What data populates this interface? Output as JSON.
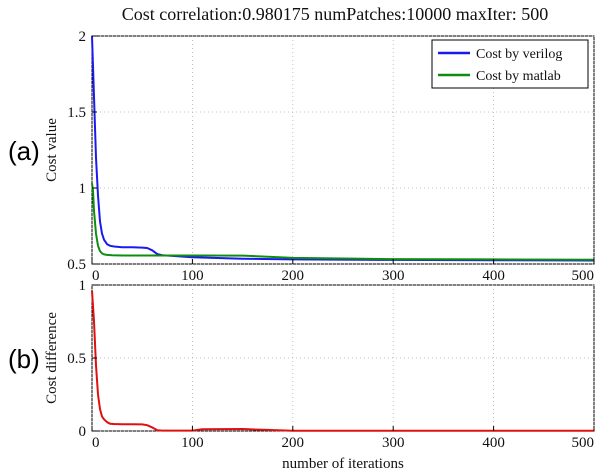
{
  "title": "Cost correlation:0.980175   numPatches:10000   maxIter: 500",
  "panel_labels": [
    "(a)",
    "(b)"
  ],
  "chart_data": [
    {
      "type": "line",
      "panel": "(a)",
      "title": "Cost correlation:0.980175   numPatches:10000   maxIter: 500",
      "xlabel": "",
      "ylabel": "Cost value",
      "xlim": [
        0,
        500
      ],
      "ylim": [
        0.5,
        2
      ],
      "xticks": [
        0,
        100,
        200,
        300,
        400,
        500
      ],
      "xtick_labels": [
        "0",
        "100",
        "200",
        "300",
        "400",
        "500"
      ],
      "yticks": [
        0.5,
        1,
        1.5,
        2
      ],
      "ytick_labels": [
        "0.5",
        "1",
        "1.5",
        "2"
      ],
      "legend_position": "top-right",
      "series": [
        {
          "name": "Cost by verilog",
          "color": "#1a1aee",
          "x": [
            0,
            2,
            4,
            6,
            8,
            10,
            12,
            15,
            18,
            22,
            30,
            40,
            50,
            55,
            60,
            65,
            70,
            80,
            100,
            150,
            200,
            300,
            400,
            500
          ],
          "y": [
            2.0,
            1.6,
            1.2,
            0.95,
            0.78,
            0.7,
            0.66,
            0.63,
            0.62,
            0.615,
            0.61,
            0.61,
            0.608,
            0.605,
            0.59,
            0.565,
            0.558,
            0.553,
            0.545,
            0.535,
            0.53,
            0.527,
            0.525,
            0.523
          ]
        },
        {
          "name": "Cost by matlab",
          "color": "#108c10",
          "x": [
            0,
            1,
            2,
            4,
            6,
            8,
            10,
            12,
            15,
            20,
            30,
            50,
            100,
            150,
            200,
            300,
            400,
            500
          ],
          "y": [
            1.03,
            0.98,
            0.85,
            0.7,
            0.62,
            0.585,
            0.57,
            0.563,
            0.56,
            0.558,
            0.556,
            0.556,
            0.556,
            0.555,
            0.54,
            0.532,
            0.53,
            0.528
          ]
        }
      ]
    },
    {
      "type": "line",
      "panel": "(b)",
      "xlabel": "number of iterations",
      "ylabel": "Cost difference",
      "xlim": [
        0,
        500
      ],
      "ylim": [
        0,
        1
      ],
      "xticks": [
        0,
        100,
        200,
        300,
        400,
        500
      ],
      "xtick_labels": [
        "0",
        "100",
        "200",
        "300",
        "400",
        "500"
      ],
      "yticks": [
        0,
        0.5,
        1
      ],
      "ytick_labels": [
        "0",
        "0.5",
        "1"
      ],
      "series": [
        {
          "color": "#e01010",
          "x": [
            0,
            2,
            4,
            6,
            8,
            10,
            12,
            15,
            18,
            22,
            30,
            40,
            50,
            55,
            60,
            65,
            70,
            100,
            110,
            150,
            170,
            200,
            300,
            400,
            500
          ],
          "y": [
            0.96,
            0.75,
            0.45,
            0.25,
            0.15,
            0.1,
            0.08,
            0.06,
            0.05,
            0.048,
            0.046,
            0.046,
            0.045,
            0.04,
            0.025,
            0.005,
            0.003,
            0.003,
            0.012,
            0.014,
            0.008,
            0.002,
            0.002,
            0.002,
            0.002
          ]
        }
      ]
    }
  ]
}
